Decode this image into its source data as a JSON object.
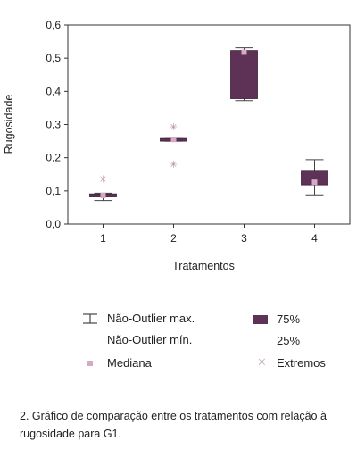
{
  "chart_data": {
    "type": "boxplot",
    "xlabel": "Tratamentos",
    "ylabel": "Rugosidade",
    "ylim": [
      0.0,
      0.6
    ],
    "yticks": [
      "0,0",
      "0,1",
      "0,2",
      "0,3",
      "0,4",
      "0,5",
      "0,6"
    ],
    "categories": [
      "1",
      "2",
      "3",
      "4"
    ],
    "boxes": [
      {
        "category": "1",
        "whisker_min": 0.071,
        "q1": 0.082,
        "median": 0.086,
        "q3": 0.091,
        "whisker_max": 0.093,
        "extremes": [
          0.136
        ]
      },
      {
        "category": "2",
        "whisker_min": 0.25,
        "q1": 0.25,
        "median": 0.255,
        "q3": 0.258,
        "whisker_max": 0.262,
        "extremes": [
          0.293,
          0.18
        ]
      },
      {
        "category": "3",
        "whisker_min": 0.372,
        "q1": 0.378,
        "median": 0.518,
        "q3": 0.523,
        "whisker_max": 0.531,
        "extremes": []
      },
      {
        "category": "4",
        "whisker_min": 0.088,
        "q1": 0.118,
        "median": 0.126,
        "q3": 0.162,
        "whisker_max": 0.194,
        "extremes": []
      }
    ],
    "colors": {
      "box": "#5e3257",
      "median": "#d6a9c4",
      "whisker": "#444444",
      "extreme": "#b38a9f"
    },
    "grid": false
  },
  "legend": {
    "whisker_max_label": "Não-Outlier max.",
    "whisker_min_label": "Não-Outlier mín.",
    "box_top_label": "75%",
    "box_bottom_label": "25%",
    "median_label": "Mediana",
    "extremes_label": "Extremos"
  },
  "caption": "2. Gráfico de comparação entre os tratamentos com relação à rugosidade para G1."
}
